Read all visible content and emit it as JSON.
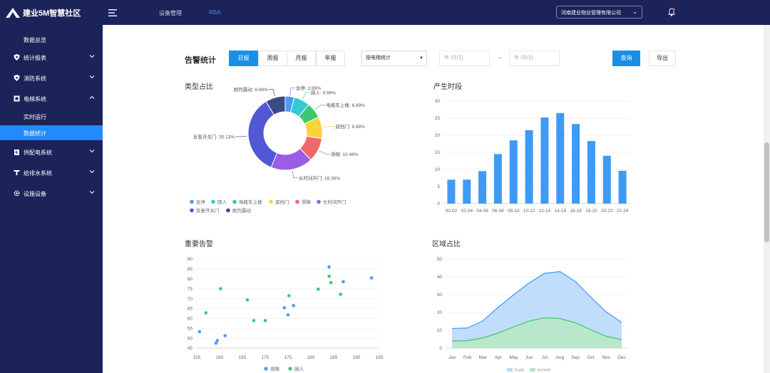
{
  "app": {
    "title": "建业5M智慧社区"
  },
  "topnav": {
    "items": [
      "设备管理",
      "RBA"
    ]
  },
  "company_select": {
    "value": "河南建业物业管理有限公司"
  },
  "sidebar": {
    "items": [
      {
        "label": "数据总览",
        "icon": "none"
      },
      {
        "label": "统计报表",
        "icon": "shield-icon"
      },
      {
        "label": "消防系统",
        "icon": "shield-icon"
      },
      {
        "label": "电梯系统",
        "icon": "elevator-icon",
        "expanded": true
      },
      {
        "label": "实时运行",
        "sub": true
      },
      {
        "label": "数据统计",
        "sub": true,
        "active": true
      },
      {
        "label": "供配电系统",
        "icon": "power-icon"
      },
      {
        "label": "给排水系统",
        "icon": "water-icon"
      },
      {
        "label": "设施设备",
        "icon": "gear-icon"
      }
    ]
  },
  "toolbar": {
    "title": "告警统计",
    "tabs": [
      "日报",
      "周报",
      "月报",
      "年报"
    ],
    "active_tab": "日报",
    "select_value": "按电梯统计",
    "date_start_placeholder": "年 /月/日",
    "date_end_placeholder": "年 /月/日",
    "tilde": "~",
    "query_label": "查询",
    "export_label": "导出"
  },
  "colors": {
    "sidebar_bg": "#1b2358",
    "accent": "#1a8fe8",
    "bar": "#3d9bf5"
  },
  "chart_data": [
    {
      "type": "pie",
      "title": "类型占比",
      "slices": [
        {
          "name": "急停",
          "value": 3.99,
          "label": "急停: 3.99%",
          "color": "#4b9bf5"
        },
        {
          "name": "困人",
          "value": 6.99,
          "label": "困人: 6.99%",
          "color": "#36c9d6"
        },
        {
          "name": "电瓶车上楼",
          "value": 6.89,
          "label": "电瓶车上楼: 6.89%",
          "color": "#3ec76f"
        },
        {
          "name": "遮挡门",
          "value": 9.48,
          "label": "遮挡门: 9.48%",
          "color": "#fad33b"
        },
        {
          "name": "滑梯",
          "value": 10.48,
          "label": "滑梯: 10.48%",
          "color": "#f0686d"
        },
        {
          "name": "长时间开门",
          "value": 18.36,
          "label": "长时间开门: 18.36%",
          "color": "#9b5ce6"
        },
        {
          "name": "反复开关门",
          "value": 35.13,
          "label": "反复开关门: 35.13%",
          "color": "#5158d6"
        },
        {
          "name": "剧烈震动",
          "value": 8.68,
          "label": "剧烈震动: 8.68%",
          "color": "#3b4a87"
        }
      ]
    },
    {
      "type": "bar",
      "title": "产生时段",
      "categories": [
        "00-02",
        "02-04",
        "04-06",
        "06-08",
        "08-10",
        "10-12",
        "12-14",
        "14-16",
        "16-18",
        "18-20",
        "20-22",
        "22-24"
      ],
      "values": [
        7,
        7,
        9.5,
        14.5,
        18.5,
        21.5,
        25.2,
        26.5,
        23.3,
        18.3,
        14,
        9.6
      ],
      "ylim": [
        0,
        30
      ],
      "yticks": [
        0,
        5,
        10,
        15,
        20,
        25,
        30
      ]
    },
    {
      "type": "scatter",
      "title": "重要告警",
      "xlim": [
        155,
        195
      ],
      "ylim": [
        45,
        90
      ],
      "xticks": [
        155,
        160,
        165,
        170,
        175,
        180,
        185,
        190,
        195
      ],
      "yticks": [
        45,
        50,
        55,
        60,
        65,
        70,
        75,
        80,
        85,
        90
      ],
      "series": [
        {
          "name": "滑梯",
          "color": "#4b9bf5",
          "points": [
            [
              155.6,
              53.3
            ],
            [
              159.2,
              47.5
            ],
            [
              159.5,
              48.8
            ],
            [
              161.2,
              51.3
            ],
            [
              174.2,
              65.4
            ],
            [
              175.0,
              61.8
            ],
            [
              176.2,
              66.5
            ],
            [
              184.0,
              86.0
            ],
            [
              187.1,
              78.6
            ],
            [
              193.3,
              80.5
            ]
          ]
        },
        {
          "name": "困人",
          "color": "#3ec76f",
          "points": [
            [
              157.0,
              62.8
            ],
            [
              160.2,
              75.0
            ],
            [
              166.1,
              69.4
            ],
            [
              167.5,
              58.9
            ],
            [
              170.0,
              58.9
            ],
            [
              175.2,
              71.5
            ],
            [
              181.6,
              74.8
            ],
            [
              184.0,
              81.3
            ],
            [
              184.4,
              78.1
            ],
            [
              186.5,
              72.2
            ]
          ]
        }
      ]
    },
    {
      "type": "area",
      "title": "区域占比",
      "categories": [
        "Jan",
        "Feb",
        "Mar",
        "Apr",
        "May",
        "Jun",
        "Jul",
        "Aug",
        "Sep",
        "Oct",
        "Nov",
        "Dec"
      ],
      "ylim": [
        0,
        50
      ],
      "yticks": [
        0,
        10,
        20,
        30,
        40,
        50
      ],
      "series": [
        {
          "name": "huati",
          "color": "#3d9bf5",
          "fill": "#b9d9fb",
          "values": [
            11,
            11.3,
            15.3,
            23,
            30,
            36.6,
            42,
            43,
            37.4,
            28.6,
            20.3,
            14.4
          ]
        },
        {
          "name": "kunren",
          "color": "#3ec76f",
          "fill": "#b8e8c6",
          "values": [
            3.9,
            4.2,
            5.7,
            8.5,
            11.9,
            15.2,
            17,
            16.6,
            14.2,
            10.3,
            6.6,
            4.8
          ]
        }
      ]
    }
  ]
}
